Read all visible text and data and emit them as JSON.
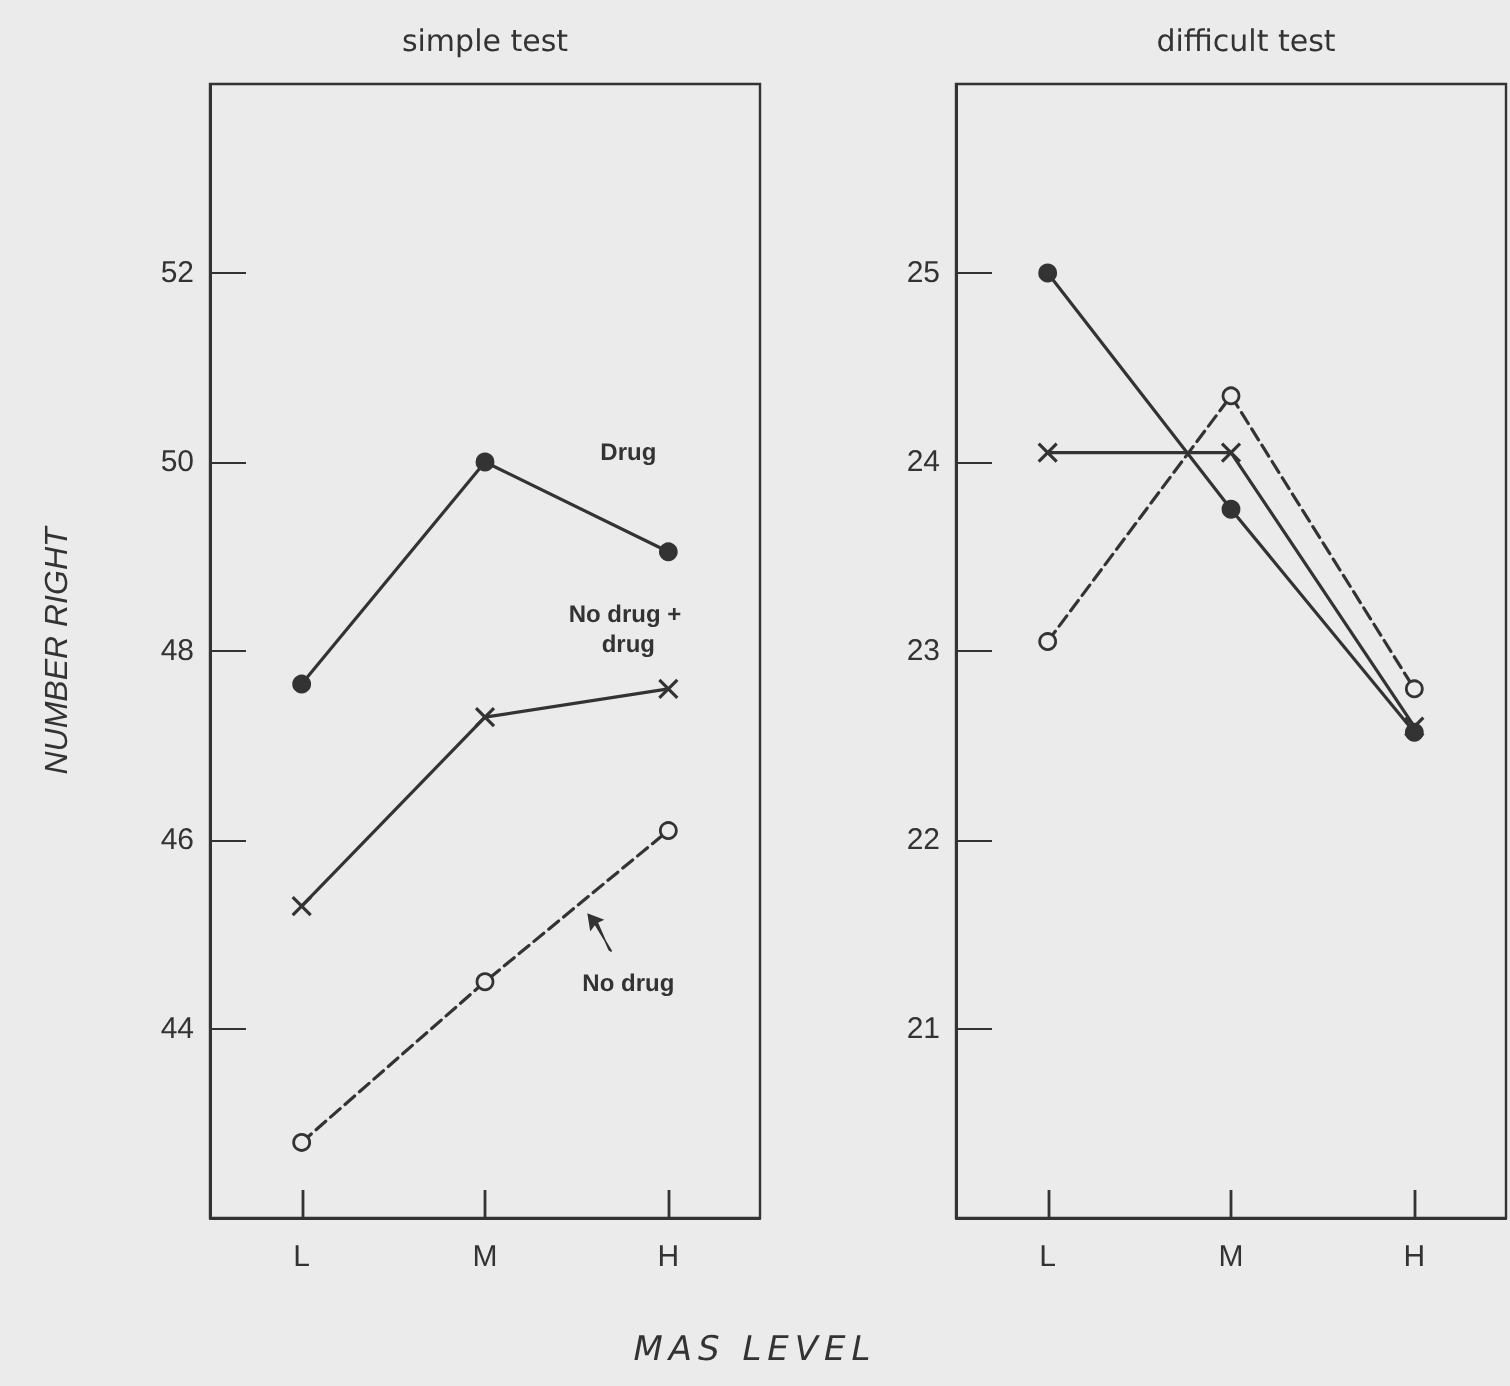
{
  "chart_data": [
    {
      "type": "line",
      "title": "simple test",
      "xlabel": "MAS LEVEL",
      "ylabel": "NUMBER RIGHT",
      "categories": [
        "L",
        "M",
        "H"
      ],
      "series": [
        {
          "color": "#333333",
          "marker": "circle",
          "line_style": "solid",
          "values": [
            47.65,
            50.0,
            49.05
          ]
        },
        {
          "color": "#333333",
          "marker": "cross",
          "line_style": "solid",
          "values": [
            45.3,
            47.3,
            47.6
          ]
        },
        {
          "color": "#333333",
          "marker": "circle",
          "line_style": "dashed",
          "values": [
            42.8,
            44.5,
            46.1
          ]
        }
      ],
      "annotations": [
        "Drug",
        "No drug + drug",
        "No drug"
      ],
      "ylim": [
        42,
        54
      ],
      "yticks": [
        44,
        46,
        48,
        50,
        52
      ],
      "grid": false
    },
    {
      "type": "line",
      "title": "difficult test",
      "categories": [
        "L",
        "M",
        "H"
      ],
      "series": [
        {
          "color": "#333333",
          "marker": "circle",
          "line_style": "solid",
          "values": [
            25.0,
            23.75,
            22.57
          ]
        },
        {
          "color": "#333333",
          "marker": "cross",
          "line_style": "solid",
          "values": [
            24.05,
            24.05,
            22.6
          ]
        },
        {
          "color": "#333333",
          "marker": "circle",
          "line_style": "dashed",
          "values": [
            23.05,
            24.35,
            22.8
          ]
        }
      ],
      "ylim": [
        20,
        26
      ],
      "yticks": [
        21,
        22,
        23,
        24,
        25
      ],
      "grid": false
    }
  ]
}
